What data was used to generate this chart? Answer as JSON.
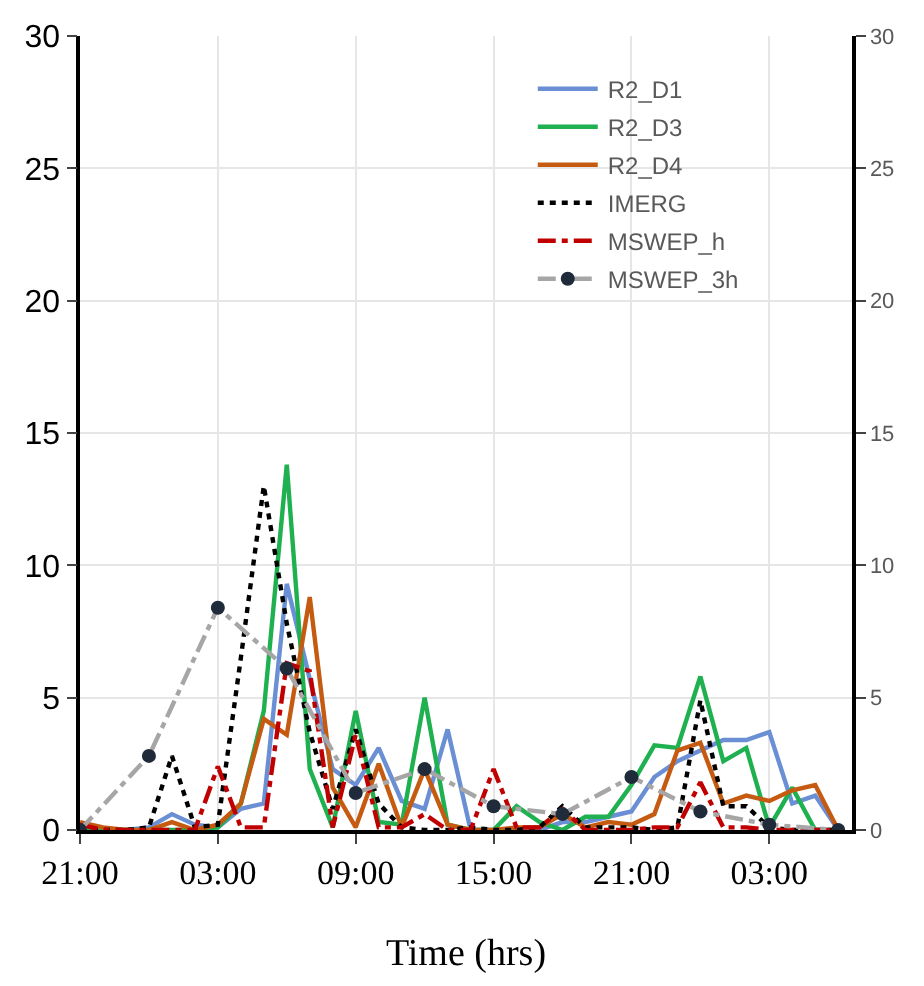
{
  "chart_data": {
    "type": "line",
    "xlabel": "Time (hrs)",
    "categories": [
      "21:00",
      null,
      null,
      null,
      null,
      null,
      "03:00",
      null,
      null,
      null,
      null,
      null,
      "09:00",
      null,
      null,
      null,
      null,
      null,
      "15:00",
      null,
      null,
      null,
      null,
      null,
      "21:00",
      null,
      null,
      null,
      null,
      null,
      "03:00",
      null,
      null,
      null
    ],
    "series": [
      {
        "name": "R2_D1",
        "color": "#6a8fd4",
        "line_style": "solid",
        "values": [
          0.1,
          0,
          0,
          0.1,
          0.6,
          0.2,
          0.1,
          0.8,
          1.0,
          9.3,
          5.7,
          2.3,
          1.7,
          3.1,
          1.1,
          0.8,
          3.8,
          0,
          0,
          0,
          0,
          0.3,
          0.3,
          0.5,
          0.7,
          2.0,
          2.6,
          3.0,
          3.4,
          3.4,
          3.7,
          1.0,
          1.3,
          0
        ]
      },
      {
        "name": "R2_D3",
        "color": "#1fb04f",
        "line_style": "solid",
        "values": [
          0.1,
          0,
          0,
          0,
          0,
          0,
          0.1,
          1.0,
          4.5,
          13.8,
          2.3,
          0.1,
          4.5,
          0.3,
          0.2,
          5.0,
          0.2,
          0,
          0,
          0.9,
          0.3,
          0,
          0.5,
          0.5,
          1.7,
          3.2,
          3.1,
          5.8,
          2.6,
          3.1,
          0.1,
          1.6,
          0,
          0
        ]
      },
      {
        "name": "R2_D4",
        "color": "#c55a11",
        "line_style": "solid",
        "values": [
          0.3,
          0.1,
          0,
          0,
          0.3,
          0,
          0.2,
          1.0,
          4.2,
          3.6,
          8.8,
          1.6,
          0.1,
          2.5,
          0.1,
          2.3,
          0.2,
          0,
          0,
          0.1,
          0.1,
          0.6,
          0.1,
          0.3,
          0.2,
          0.6,
          3.0,
          3.3,
          1.0,
          1.3,
          1.1,
          1.5,
          1.7,
          0
        ]
      },
      {
        "name": "IMERG",
        "color": "#000000",
        "line_style": "dotted",
        "values": [
          0,
          0,
          0,
          0.1,
          2.8,
          0.1,
          0.2,
          6.5,
          13.0,
          7.8,
          3.7,
          0.8,
          3.8,
          1.0,
          0.1,
          0,
          0,
          0.1,
          0,
          0,
          0.1,
          0.9,
          0.1,
          0.1,
          0.1,
          0,
          0.1,
          4.9,
          0.9,
          0.9,
          0.1,
          0,
          0,
          0
        ]
      },
      {
        "name": "MSWEP_h",
        "color": "#c00000",
        "line_style": "dashdot",
        "values": [
          0.2,
          0,
          0,
          0,
          0,
          0,
          2.4,
          0.1,
          0.1,
          6.3,
          6.0,
          0.1,
          3.6,
          0.1,
          0.1,
          0.6,
          0,
          0,
          2.3,
          0.1,
          0.1,
          0.8,
          0,
          0,
          0,
          0.1,
          0.1,
          1.8,
          0.1,
          0.1,
          0,
          0,
          0,
          0
        ]
      },
      {
        "name": "MSWEP_3h",
        "color": "#a6a6a6",
        "line_style": "dashdot",
        "marker": "circle",
        "values": [
          0,
          null,
          null,
          2.8,
          null,
          null,
          8.4,
          null,
          null,
          6.1,
          null,
          null,
          1.4,
          null,
          null,
          2.3,
          null,
          null,
          0.9,
          null,
          null,
          0.6,
          null,
          null,
          2.0,
          null,
          null,
          0.7,
          null,
          null,
          0.2,
          null,
          null,
          0
        ]
      }
    ],
    "ylim": [
      0,
      30
    ],
    "yticks": [
      0,
      5,
      10,
      15,
      20,
      25,
      30
    ],
    "y2lim": [
      0,
      30
    ],
    "y2ticks": [
      0,
      5,
      10,
      15,
      20,
      25,
      30
    ],
    "grid": true,
    "legend": "top right",
    "marker": "none"
  }
}
